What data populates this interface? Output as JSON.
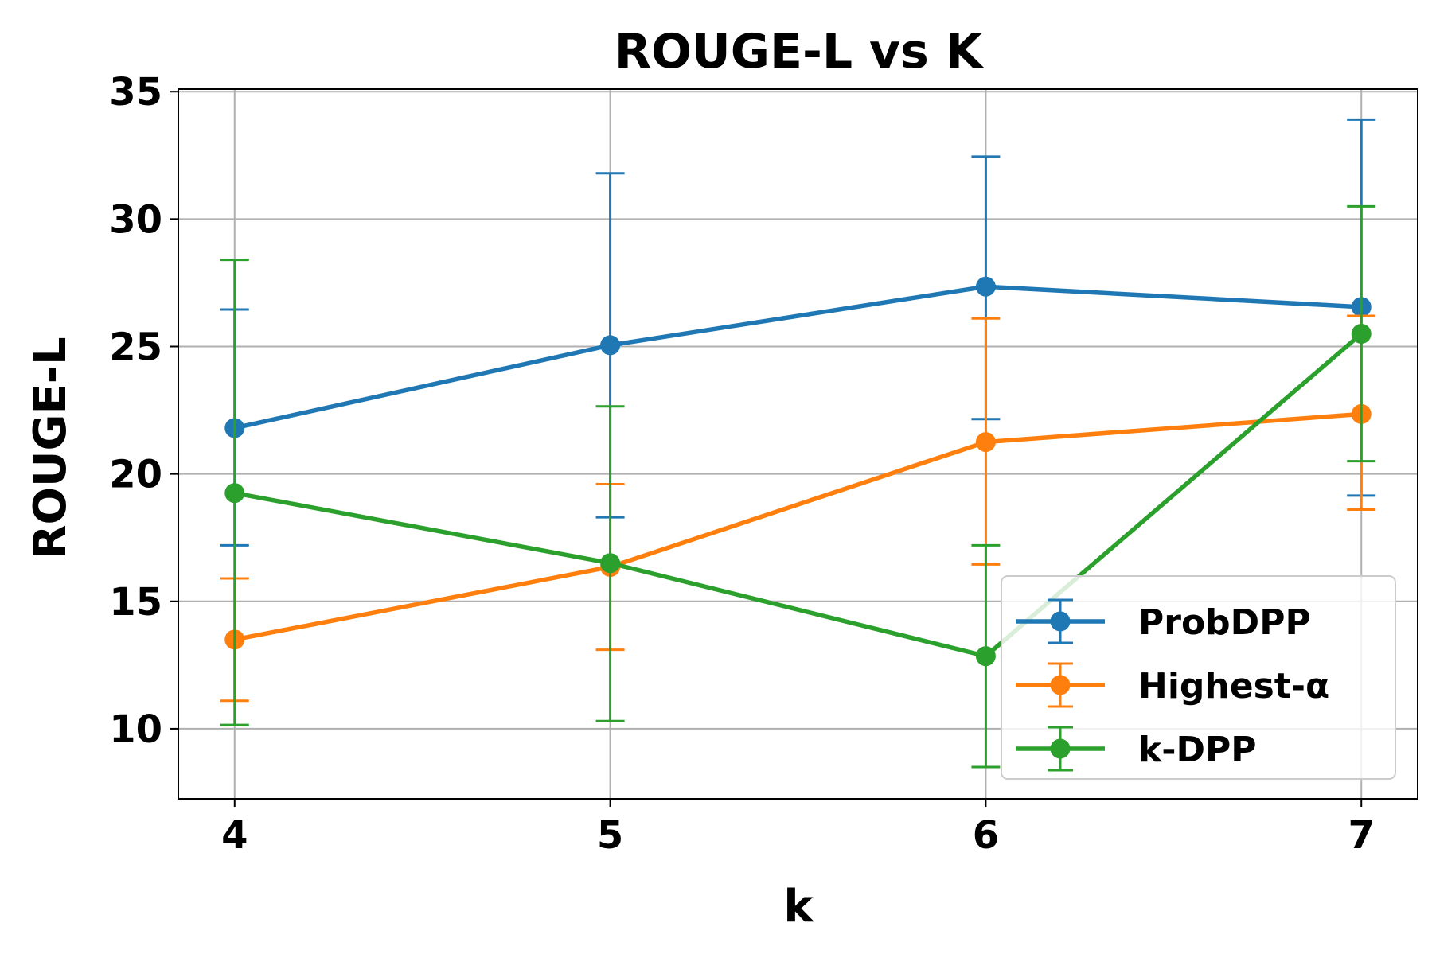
{
  "chart_data": {
    "type": "line",
    "title": "ROUGE-L vs K",
    "xlabel": "k",
    "ylabel": "ROUGE-L",
    "x": [
      4,
      5,
      6,
      7
    ],
    "x_ticks": [
      "4",
      "5",
      "6",
      "7"
    ],
    "y_ticks": [
      "10",
      "15",
      "20",
      "25",
      "30",
      "35"
    ],
    "xlim": [
      3.85,
      7.15
    ],
    "ylim": [
      7.25,
      35.1
    ],
    "grid": true,
    "legend_position": "lower-right",
    "error_bars": true,
    "series": [
      {
        "name": "ProbDPP",
        "color": "#1f77b4",
        "values": [
          21.8,
          25.05,
          27.35,
          26.55
        ],
        "err_low": [
          17.2,
          18.3,
          22.15,
          19.15
        ],
        "err_high": [
          26.45,
          31.8,
          32.45,
          33.9
        ]
      },
      {
        "name": "Highest-α",
        "color": "#ff7f0e",
        "values": [
          13.5,
          16.35,
          21.25,
          22.35
        ],
        "err_low": [
          11.1,
          13.1,
          16.45,
          18.6
        ],
        "err_high": [
          15.9,
          19.6,
          26.1,
          26.2
        ]
      },
      {
        "name": "k-DPP",
        "color": "#2ca02c",
        "values": [
          19.25,
          16.5,
          12.85,
          25.5
        ],
        "err_low": [
          10.15,
          10.3,
          8.5,
          20.5
        ],
        "err_high": [
          28.4,
          22.65,
          17.2,
          30.5
        ]
      }
    ]
  }
}
